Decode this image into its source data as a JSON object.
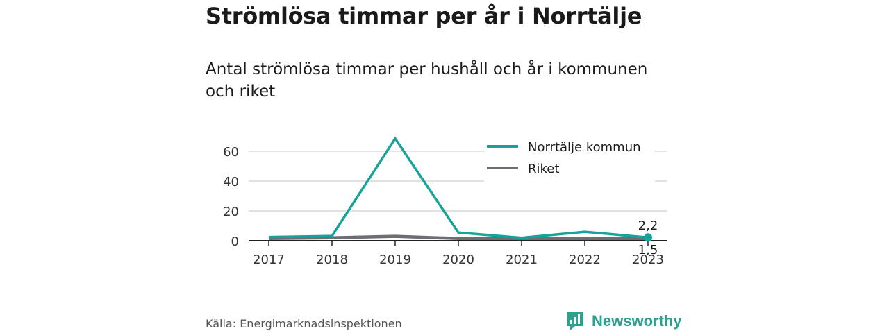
{
  "title": "Strömlösa timmar per år i Norrtälje",
  "subtitle": "Antal strömlösa timmar per hushåll och år i kommunen och riket",
  "source": "Källa: Energimarknadsinspektionen",
  "brand": "Newsworthy",
  "colors": {
    "teal": "#18a39a",
    "gray": "#6d6d72",
    "grid": "#d9d9d9",
    "brand": "#2fa08f"
  },
  "chart_data": {
    "type": "line",
    "x": [
      "2017",
      "2018",
      "2019",
      "2020",
      "2021",
      "2022",
      "2023"
    ],
    "yticks": [
      "0",
      "20",
      "40",
      "60"
    ],
    "ylim": [
      0,
      70
    ],
    "grid": true,
    "legend_position": "top-right",
    "series": [
      {
        "name": "Norrtälje kommun",
        "color": "#18a39a",
        "values": [
          2.5,
          3.2,
          68.5,
          5.5,
          2.0,
          6.0,
          2.2
        ]
      },
      {
        "name": "Riket",
        "color": "#6d6d72",
        "values": [
          1.5,
          2.0,
          3.0,
          1.5,
          1.5,
          1.5,
          1.5
        ]
      }
    ],
    "end_labels": [
      "2,2",
      "1,5"
    ]
  }
}
